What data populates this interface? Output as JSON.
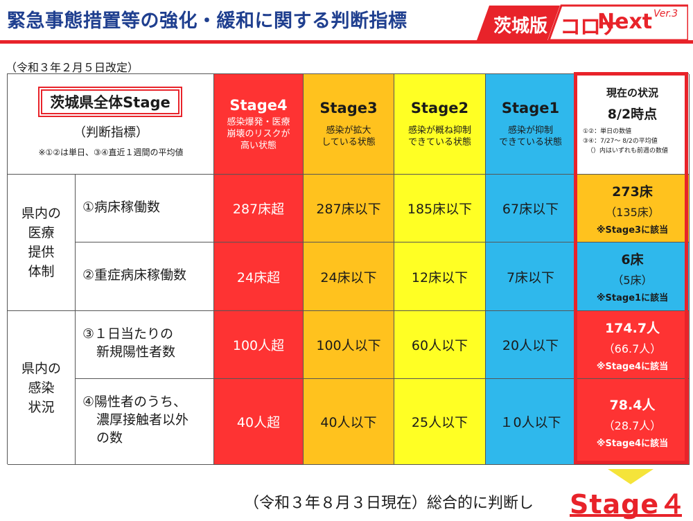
{
  "header": {
    "title": "緊急事態措置等の強化・緩和に関する判断指標",
    "logo_ibaraki": "茨城版",
    "logo_corona": "コロナ",
    "logo_next": "Next",
    "logo_version": "Ver.3",
    "accent_color": "#e8232a",
    "title_color": "#1f3f8f"
  },
  "revision_note": "（令和３年２月５日改定）",
  "table": {
    "corner": {
      "stage_label": "茨城県全体Stage",
      "subtitle": "（判断指標）",
      "note": "※①②は単日、③④直近１週間の平均値"
    },
    "stages": [
      {
        "name": "Stage4",
        "desc_line1": "感染爆発・医療",
        "desc_line2": "崩壊のリスクが",
        "desc_line3": "高い状態",
        "color": "#fe3333"
      },
      {
        "name": "Stage3",
        "desc_line1": "感染が拡大",
        "desc_line2": "している状態",
        "desc_line3": "",
        "color": "#ffc21e"
      },
      {
        "name": "Stage2",
        "desc_line1": "感染が概ね抑制",
        "desc_line2": "できている状態",
        "desc_line3": "",
        "color": "#ffff24"
      },
      {
        "name": "Stage1",
        "desc_line1": "感染が抑制",
        "desc_line2": "できている状態",
        "desc_line3": "",
        "color": "#2fb8ec"
      }
    ],
    "current_header": {
      "title": "現在の状況",
      "date": "8/2時点",
      "note_line1": "①②：単日の数値",
      "note_line2": "③④：7/27～ 8/2の平均値",
      "note_line3": "（）内はいずれも前週の数値"
    },
    "groups": [
      {
        "line1": "県内の",
        "line2": "医療",
        "line3": "提供",
        "line4": "体制"
      },
      {
        "line1": "県内の",
        "line2": "感染",
        "line3": "状況",
        "line4": ""
      }
    ],
    "rows": [
      {
        "item_line1": "①病床稼働数",
        "item_line2": "",
        "item_line3": "",
        "s4": "287床超",
        "s3": "287床以下",
        "s2": "185床以下",
        "s1": "67床以下",
        "current": "273床",
        "previous": "（135床）",
        "status": "※Stage3に該当",
        "status_color": "#ffc21e"
      },
      {
        "item_line1": "②重症病床稼働数",
        "item_line2": "",
        "item_line3": "",
        "s4": "24床超",
        "s3": "24床以下",
        "s2": "12床以下",
        "s1": "7床以下",
        "current": "6床",
        "previous": "（5床）",
        "status": "※Stage1に該当",
        "status_color": "#2fb8ec"
      },
      {
        "item_line1": "③１日当たりの",
        "item_line2": "新規陽性者数",
        "item_line3": "",
        "s4": "100人超",
        "s3": "100人以下",
        "s2": "60人以下",
        "s1": "20人以下",
        "current": "174.7人",
        "previous": "（66.7人）",
        "status": "※Stage4に該当",
        "status_color": "#fe3333"
      },
      {
        "item_line1": "④陽性者のうち、",
        "item_line2": "濃厚接触者以外",
        "item_line3": "の数",
        "s4": "40人超",
        "s3": "40人以下",
        "s2": "25人以下",
        "s1": "１0人以下",
        "current": "78.4人",
        "previous": "（28.7人）",
        "status": "※Stage4に該当",
        "status_color": "#fe3333"
      }
    ]
  },
  "conclusion": {
    "text": "（令和３年８月３日現在）総合的に判断し",
    "stage": "Stage４"
  }
}
